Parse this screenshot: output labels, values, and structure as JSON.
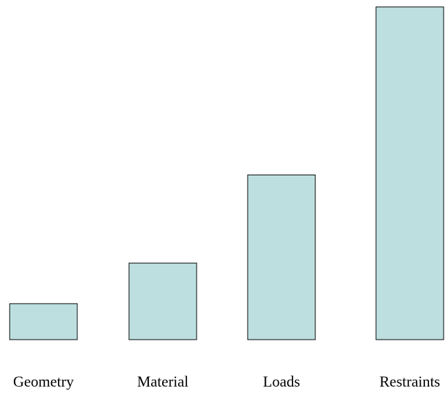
{
  "chart_data": {
    "type": "bar",
    "categories": [
      "Geometry",
      "Material",
      "Loads",
      "Restraints"
    ],
    "values": [
      10.8,
      23.0,
      49.5,
      100
    ],
    "title": "",
    "xlabel": "",
    "ylabel": "",
    "ylim": [
      0,
      100
    ],
    "grid": false,
    "legend": "none",
    "bar_color": "#bddfe0",
    "bar_edge_color": "#000000"
  }
}
